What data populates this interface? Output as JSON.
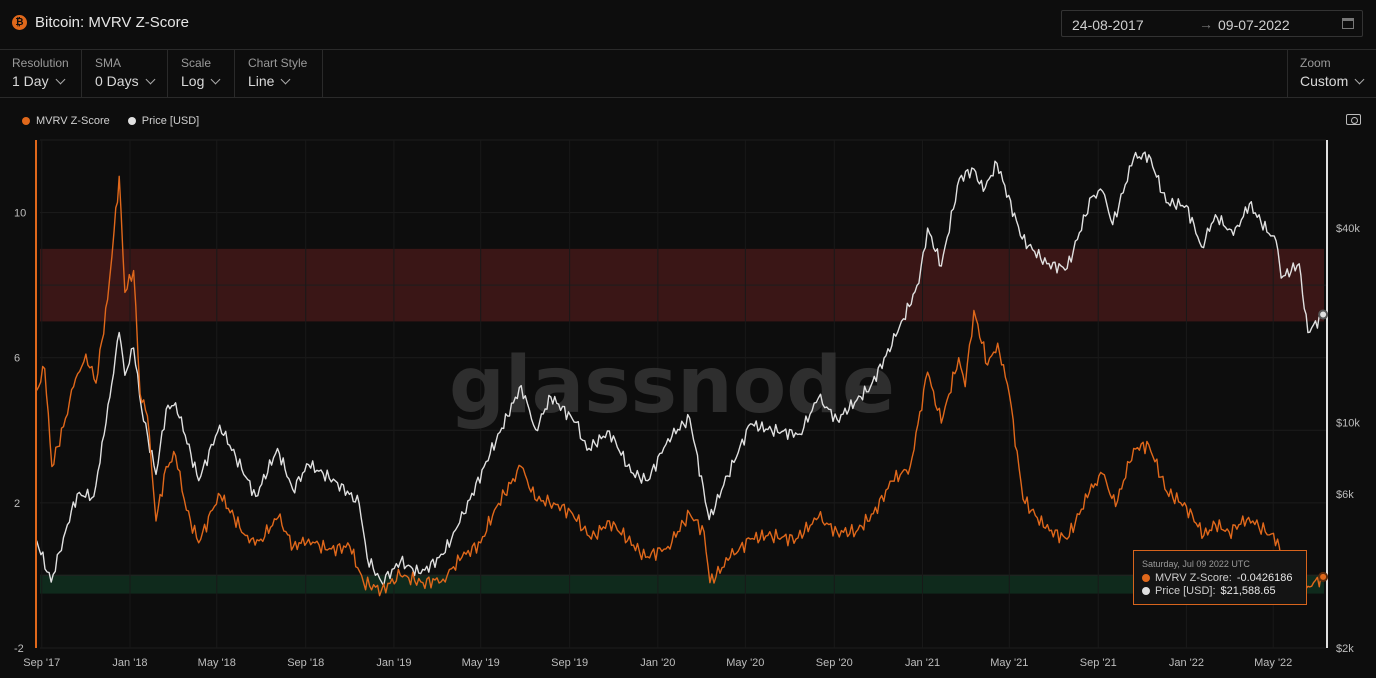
{
  "header": {
    "title": "Bitcoin: MVRV Z-Score",
    "date_start": "24-08-2017",
    "date_arrow": "→",
    "date_end": "09-07-2022"
  },
  "controls": {
    "resolution": {
      "label": "Resolution",
      "value": "1 Day"
    },
    "sma": {
      "label": "SMA",
      "value": "0 Days"
    },
    "scale": {
      "label": "Scale",
      "value": "Log"
    },
    "chart_style": {
      "label": "Chart Style",
      "value": "Line"
    },
    "zoom": {
      "label": "Zoom",
      "value": "Custom"
    }
  },
  "watermark": "glassnode",
  "tooltip": {
    "date": "Saturday, Jul 09 2022 UTC",
    "mvrv_label": "MVRV Z-Score:",
    "mvrv_value": "-0.0426186",
    "price_label": "Price [USD]:",
    "price_value": "$21,588.65"
  },
  "colors": {
    "mvrv": "#e0681b",
    "price": "#e0e0e0",
    "red_band": "#3a1616",
    "green_band": "#0f2a1c",
    "background": "#0d0d0d"
  },
  "chart_data": {
    "type": "line",
    "legend": [
      "MVRV Z-Score",
      "Price [USD]"
    ],
    "legend_position": "top-left",
    "x_ticks": [
      "Sep '17",
      "Jan '18",
      "May '18",
      "Sep '18",
      "Jan '19",
      "May '19",
      "Sep '19",
      "Jan '20",
      "May '20",
      "Sep '20",
      "Jan '21",
      "May '21",
      "Sep '21",
      "Jan '22",
      "May '22"
    ],
    "y_left_ticks": [
      "10",
      "6",
      "2",
      "-2"
    ],
    "y_left_range": [
      -2,
      12
    ],
    "y_right_ticks": [
      "$40k",
      "$10k",
      "$6k",
      "$2k"
    ],
    "y_right_scale": "log",
    "y_right_range": [
      2000,
      75000
    ],
    "bands": {
      "overvalued_zscore": [
        7,
        9
      ],
      "undervalued_zscore": [
        -0.5,
        0
      ]
    },
    "grid": true,
    "series": [
      {
        "name": "MVRV Z-Score",
        "axis": "left",
        "points": [
          [
            "2017-08-25",
            5.1
          ],
          [
            "2017-09-05",
            5.7
          ],
          [
            "2017-09-15",
            3.0
          ],
          [
            "2017-10-01",
            4.1
          ],
          [
            "2017-10-15",
            5.2
          ],
          [
            "2017-11-01",
            6.1
          ],
          [
            "2017-11-15",
            5.3
          ],
          [
            "2017-12-01",
            7.6
          ],
          [
            "2017-12-10",
            9.5
          ],
          [
            "2017-12-17",
            11.0
          ],
          [
            "2017-12-25",
            7.8
          ],
          [
            "2018-01-06",
            8.4
          ],
          [
            "2018-01-15",
            5.0
          ],
          [
            "2018-01-25",
            4.4
          ],
          [
            "2018-02-06",
            1.5
          ],
          [
            "2018-02-20",
            3.0
          ],
          [
            "2018-03-05",
            3.3
          ],
          [
            "2018-03-20",
            1.8
          ],
          [
            "2018-04-06",
            0.9
          ],
          [
            "2018-04-25",
            1.8
          ],
          [
            "2018-05-06",
            2.2
          ],
          [
            "2018-05-25",
            1.6
          ],
          [
            "2018-06-15",
            0.9
          ],
          [
            "2018-07-01",
            1.0
          ],
          [
            "2018-07-25",
            1.6
          ],
          [
            "2018-08-15",
            0.8
          ],
          [
            "2018-09-05",
            1.0
          ],
          [
            "2018-10-01",
            0.7
          ],
          [
            "2018-11-01",
            0.8
          ],
          [
            "2018-11-20",
            -0.2
          ],
          [
            "2018-12-15",
            -0.4
          ],
          [
            "2019-01-10",
            0.0
          ],
          [
            "2019-02-10",
            -0.2
          ],
          [
            "2019-03-10",
            -0.1
          ],
          [
            "2019-04-05",
            0.5
          ],
          [
            "2019-05-01",
            0.9
          ],
          [
            "2019-05-20",
            1.8
          ],
          [
            "2019-06-26",
            3.0
          ],
          [
            "2019-07-15",
            2.1
          ],
          [
            "2019-08-10",
            2.0
          ],
          [
            "2019-09-05",
            1.7
          ],
          [
            "2019-10-01",
            1.0
          ],
          [
            "2019-10-26",
            1.5
          ],
          [
            "2019-12-15",
            0.5
          ],
          [
            "2020-01-15",
            0.8
          ],
          [
            "2020-02-14",
            1.7
          ],
          [
            "2020-03-05",
            1.2
          ],
          [
            "2020-03-13",
            -0.2
          ],
          [
            "2020-04-10",
            0.5
          ],
          [
            "2020-05-08",
            1.0
          ],
          [
            "2020-06-01",
            1.1
          ],
          [
            "2020-07-10",
            1.0
          ],
          [
            "2020-08-10",
            1.6
          ],
          [
            "2020-09-05",
            1.2
          ],
          [
            "2020-10-01",
            1.2
          ],
          [
            "2020-10-25",
            1.7
          ],
          [
            "2020-11-20",
            2.6
          ],
          [
            "2020-12-15",
            3.0
          ],
          [
            "2021-01-08",
            5.6
          ],
          [
            "2021-01-27",
            4.2
          ],
          [
            "2021-02-20",
            6.0
          ],
          [
            "2021-03-01",
            5.2
          ],
          [
            "2021-03-13",
            7.3
          ],
          [
            "2021-04-01",
            5.8
          ],
          [
            "2021-04-15",
            6.4
          ],
          [
            "2021-05-01",
            5.0
          ],
          [
            "2021-05-20",
            2.1
          ],
          [
            "2021-06-20",
            1.3
          ],
          [
            "2021-07-20",
            1.0
          ],
          [
            "2021-08-20",
            2.3
          ],
          [
            "2021-09-07",
            2.8
          ],
          [
            "2021-09-25",
            1.9
          ],
          [
            "2021-10-20",
            3.5
          ],
          [
            "2021-11-10",
            3.6
          ],
          [
            "2021-12-05",
            2.3
          ],
          [
            "2022-01-01",
            1.9
          ],
          [
            "2022-01-25",
            1.1
          ],
          [
            "2022-02-10",
            1.4
          ],
          [
            "2022-03-01",
            1.2
          ],
          [
            "2022-03-28",
            1.6
          ],
          [
            "2022-04-20",
            1.2
          ],
          [
            "2022-05-07",
            1.0
          ],
          [
            "2022-05-12",
            0.4
          ],
          [
            "2022-06-01",
            0.4
          ],
          [
            "2022-06-13",
            -0.1
          ],
          [
            "2022-06-18",
            -0.3
          ],
          [
            "2022-07-09",
            -0.04
          ]
        ]
      },
      {
        "name": "Price [USD]",
        "axis": "right",
        "points": [
          [
            "2017-08-25",
            4300
          ],
          [
            "2017-09-14",
            3200
          ],
          [
            "2017-10-01",
            4400
          ],
          [
            "2017-10-20",
            6000
          ],
          [
            "2017-11-12",
            5900
          ],
          [
            "2017-11-29",
            10000
          ],
          [
            "2017-12-17",
            19000
          ],
          [
            "2017-12-25",
            14000
          ],
          [
            "2018-01-06",
            17000
          ],
          [
            "2018-01-17",
            11000
          ],
          [
            "2018-02-06",
            6900
          ],
          [
            "2018-02-20",
            11000
          ],
          [
            "2018-03-05",
            11500
          ],
          [
            "2018-04-06",
            6600
          ],
          [
            "2018-05-05",
            9800
          ],
          [
            "2018-06-24",
            5900
          ],
          [
            "2018-07-24",
            8300
          ],
          [
            "2018-08-14",
            6200
          ],
          [
            "2018-09-05",
            7400
          ],
          [
            "2018-10-15",
            6500
          ],
          [
            "2018-11-14",
            5600
          ],
          [
            "2018-11-25",
            3800
          ],
          [
            "2018-12-15",
            3200
          ],
          [
            "2019-01-10",
            3700
          ],
          [
            "2019-02-07",
            3400
          ],
          [
            "2019-03-10",
            3900
          ],
          [
            "2019-04-02",
            4900
          ],
          [
            "2019-05-14",
            8000
          ],
          [
            "2019-06-26",
            13000
          ],
          [
            "2019-07-16",
            9500
          ],
          [
            "2019-08-06",
            12000
          ],
          [
            "2019-09-10",
            10000
          ],
          [
            "2019-09-25",
            8200
          ],
          [
            "2019-10-26",
            9400
          ],
          [
            "2019-11-25",
            7000
          ],
          [
            "2019-12-18",
            6600
          ],
          [
            "2020-01-15",
            8900
          ],
          [
            "2020-02-14",
            10300
          ],
          [
            "2020-03-12",
            5000
          ],
          [
            "2020-04-01",
            6400
          ],
          [
            "2020-05-08",
            9900
          ],
          [
            "2020-06-01",
            9500
          ],
          [
            "2020-07-15",
            9200
          ],
          [
            "2020-08-10",
            11900
          ],
          [
            "2020-09-05",
            10200
          ],
          [
            "2020-10-21",
            12900
          ],
          [
            "2020-11-25",
            18500
          ],
          [
            "2020-12-27",
            27000
          ],
          [
            "2021-01-08",
            40000
          ],
          [
            "2021-01-27",
            30500
          ],
          [
            "2021-02-21",
            57000
          ],
          [
            "2021-03-13",
            61000
          ],
          [
            "2021-03-26",
            52000
          ],
          [
            "2021-04-14",
            63500
          ],
          [
            "2021-05-19",
            37000
          ],
          [
            "2021-06-22",
            31000
          ],
          [
            "2021-07-20",
            30000
          ],
          [
            "2021-08-23",
            50000
          ],
          [
            "2021-09-07",
            52000
          ],
          [
            "2021-09-21",
            41000
          ],
          [
            "2021-10-20",
            66000
          ],
          [
            "2021-11-10",
            67500
          ],
          [
            "2021-12-04",
            48000
          ],
          [
            "2022-01-01",
            47000
          ],
          [
            "2022-01-22",
            35000
          ],
          [
            "2022-02-10",
            44000
          ],
          [
            "2022-03-07",
            38000
          ],
          [
            "2022-03-29",
            47500
          ],
          [
            "2022-04-25",
            38500
          ],
          [
            "2022-05-05",
            36500
          ],
          [
            "2022-05-12",
            28000
          ],
          [
            "2022-06-06",
            31000
          ],
          [
            "2022-06-13",
            22500
          ],
          [
            "2022-06-18",
            19000
          ],
          [
            "2022-07-09",
            21588.65
          ]
        ]
      }
    ]
  }
}
